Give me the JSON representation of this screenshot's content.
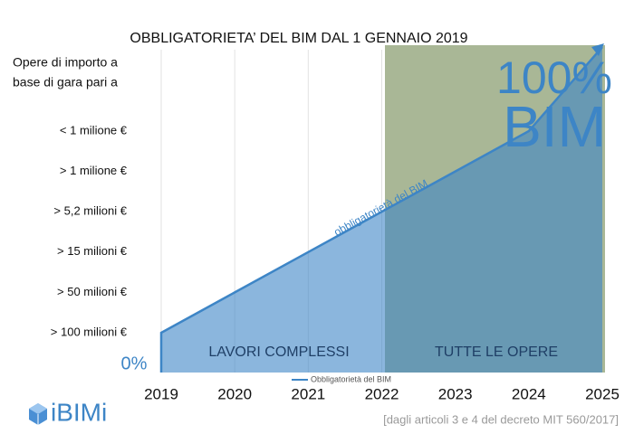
{
  "chart_data": {
    "type": "line",
    "title": "OBBLIGATORIETA’ DEL BIM DAL 1 GENNAIO 2019",
    "y_axis_label": [
      "Opere di importo a",
      "base di gara pari a"
    ],
    "y_categories": [
      "< 1 milione €",
      "> 1 milione €",
      "> 5,2 milioni €",
      "> 15 milioni €",
      "> 50 milioni €",
      "> 100 milioni €"
    ],
    "categories": [
      "2019",
      "2020",
      "2021",
      "2022",
      "2023",
      "2024",
      "2025"
    ],
    "series": [
      {
        "name": "Obbligatorietà del BIM",
        "color": "#3d85c6"
      }
    ],
    "annotations": {
      "start": "0%",
      "end": [
        "100%",
        "BIM"
      ],
      "line_label": "obbligatorietà del BIM",
      "left_zone": "LAVORI COMPLESSI",
      "right_zone": "TUTTE LE OPERE"
    },
    "logo": "iBIMi",
    "source": "[dagli articoli 3 e 4 del decreto MIT 560/2017]"
  }
}
